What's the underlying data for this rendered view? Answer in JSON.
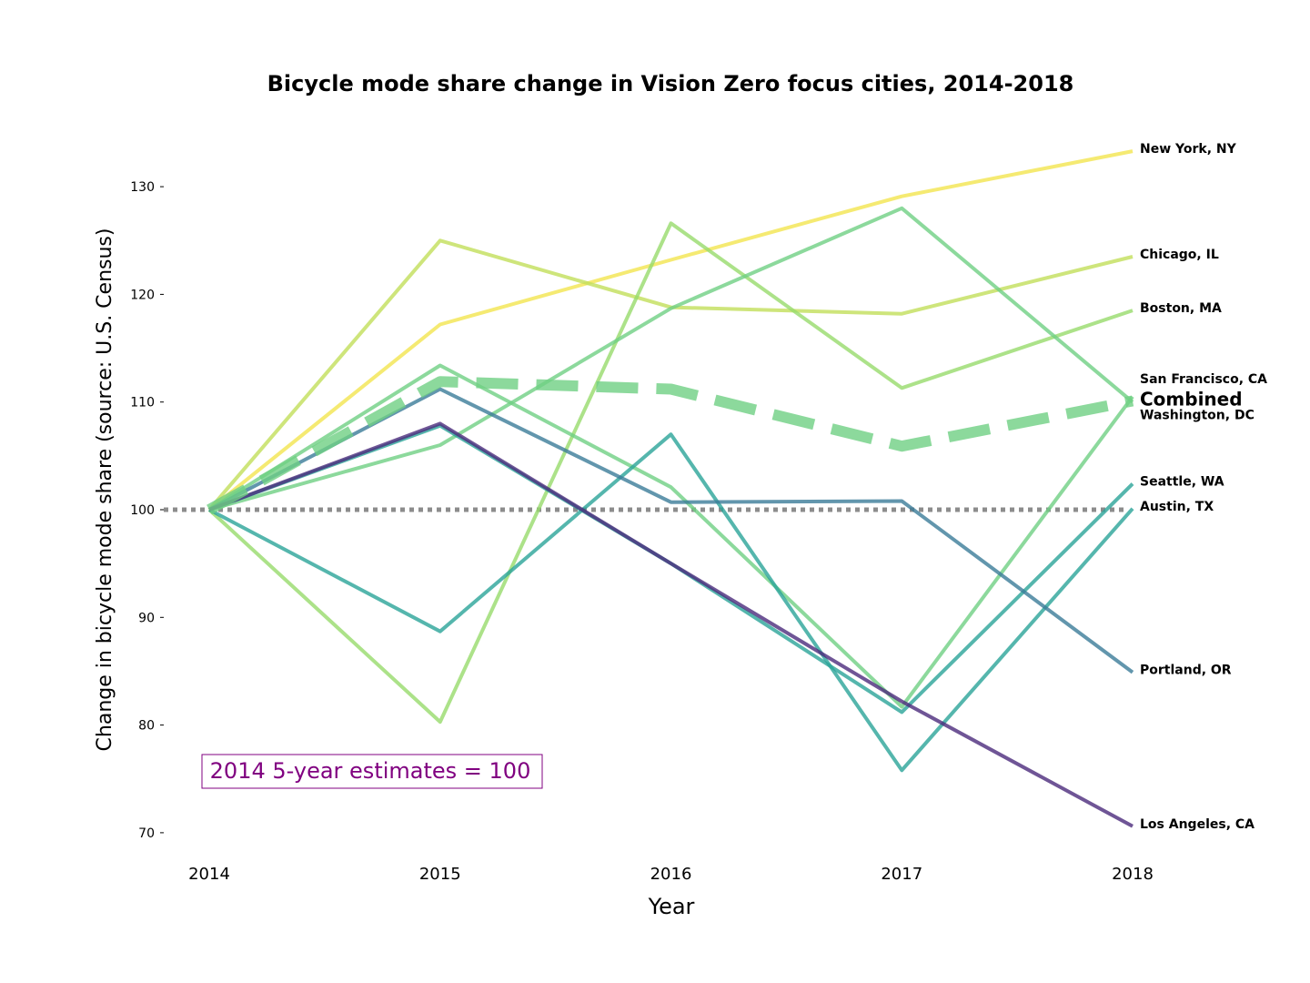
{
  "chart_data": {
    "type": "line",
    "title": "Bicycle mode share change in Vision Zero focus cities, 2014-2018",
    "xlabel": "Year",
    "ylabel": "Change in bicycle mode share (source: U.S. Census)",
    "x": [
      2014,
      2015,
      2016,
      2017,
      2018
    ],
    "xticks": [
      "2014",
      "2015",
      "2016",
      "2017",
      "2018"
    ],
    "yticks": [
      "70",
      "80",
      "90",
      "100",
      "110",
      "120",
      "130"
    ],
    "ylim": [
      68,
      138
    ],
    "grid": false,
    "baseline": {
      "value": 100,
      "color": "#8c8c8c",
      "style": "dotted"
    },
    "annotation": {
      "text": "2014 5-year estimates = 100",
      "color": "#800080",
      "placement": "bottom-left"
    },
    "series": [
      {
        "name": "New York, NY",
        "values": [
          100,
          117.2,
          123.2,
          129.1,
          133.3
        ],
        "color": "#f3e54f"
      },
      {
        "name": "Chicago, IL",
        "values": [
          100,
          125.0,
          118.8,
          118.2,
          123.5
        ],
        "color": "#c2df5a"
      },
      {
        "name": "Boston, MA",
        "values": [
          100,
          80.3,
          126.6,
          111.3,
          118.5
        ],
        "color": "#97db6c"
      },
      {
        "name": "San Francisco, CA",
        "values": [
          100,
          113.4,
          102.1,
          81.7,
          110.5
        ],
        "color": "#6fcf83"
      },
      {
        "name": "Washington, DC",
        "values": [
          100,
          106.0,
          118.7,
          128.0,
          110.0
        ],
        "color": "#6fcf83"
      },
      {
        "name": "Seattle, WA",
        "values": [
          100,
          107.8,
          95.0,
          81.2,
          102.4
        ],
        "color": "#2aa498"
      },
      {
        "name": "Austin, TX",
        "values": [
          100,
          88.7,
          107.0,
          75.8,
          100.1
        ],
        "color": "#2aa498"
      },
      {
        "name": "Portland, OR",
        "values": [
          100,
          111.2,
          100.7,
          100.8,
          84.9
        ],
        "color": "#3b7c98"
      },
      {
        "name": "Los Angeles, CA",
        "values": [
          100,
          108.0,
          95.0,
          82.2,
          70.6
        ],
        "color": "#4b2a7c"
      },
      {
        "name": "Combined",
        "values": [
          100,
          111.9,
          111.2,
          105.9,
          110.1
        ],
        "color": "#6fcf83",
        "style": "dashed"
      }
    ]
  }
}
